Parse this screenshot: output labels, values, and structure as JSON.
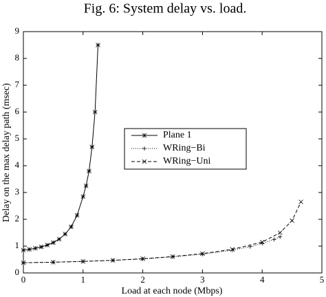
{
  "chart_data": {
    "type": "line",
    "title": "Fig. 6: System delay vs. load.",
    "x_label": "Load at each node (Mbps)",
    "y_label": "Delay on the max delay path (msec)",
    "xlim": [
      0,
      5
    ],
    "xticks": [
      0,
      1,
      2,
      3,
      4,
      5
    ],
    "ylim": [
      0,
      9
    ],
    "yticks": [
      0,
      1,
      2,
      3,
      4,
      5,
      6,
      7,
      8,
      9
    ],
    "grid": false,
    "legend": "center",
    "series": [
      {
        "name": "Plane 1",
        "color": "#000000",
        "linestyle": "solid",
        "marker": "star",
        "x": [
          0,
          0.1,
          0.2,
          0.3,
          0.4,
          0.5,
          0.6,
          0.7,
          0.8,
          0.9,
          1.0,
          1.05,
          1.1,
          1.15,
          1.2,
          1.25
        ],
        "values": [
          0.85,
          0.88,
          0.92,
          0.97,
          1.04,
          1.13,
          1.26,
          1.45,
          1.72,
          2.15,
          2.85,
          3.25,
          3.8,
          4.7,
          6.0,
          8.5
        ]
      },
      {
        "name": "WRing−Bi",
        "color": "#000000",
        "linestyle": "dotted",
        "marker": "plus",
        "x": [
          0,
          0.5,
          1,
          1.5,
          2,
          2.5,
          3,
          3.5,
          3.8,
          4.0,
          4.2,
          4.3
        ],
        "values": [
          0.38,
          0.4,
          0.43,
          0.47,
          0.52,
          0.6,
          0.7,
          0.85,
          0.98,
          1.1,
          1.25,
          1.35
        ]
      },
      {
        "name": "WRing−Uni",
        "color": "#000000",
        "linestyle": "dashed",
        "marker": "cross",
        "x": [
          0,
          0.5,
          1,
          1.5,
          2,
          2.5,
          3,
          3.5,
          4.0,
          4.3,
          4.5,
          4.65
        ],
        "values": [
          0.38,
          0.4,
          0.43,
          0.47,
          0.53,
          0.61,
          0.72,
          0.88,
          1.15,
          1.5,
          1.95,
          2.65
        ]
      }
    ]
  }
}
